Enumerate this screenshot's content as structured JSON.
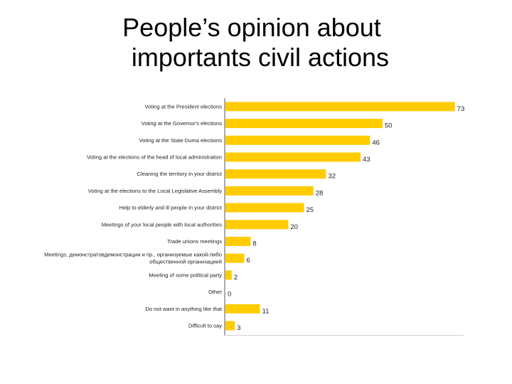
{
  "title_line1": "People’s opinion about",
  "title_line2": "importants civil actions",
  "chart_data": {
    "type": "bar",
    "orientation": "horizontal",
    "title": "People’s opinion about importants civil actions",
    "xlabel": "",
    "ylabel": "",
    "xlim": [
      0,
      80
    ],
    "grid": false,
    "legend": "none",
    "bar_color": "#FFCC00",
    "categories": [
      [
        "Voting at the President elections"
      ],
      [
        "Voting at the Governor's elections"
      ],
      [
        "Voting at the State Duma elections"
      ],
      [
        "Voting at the elections of the head of local administration"
      ],
      [
        "Cleaning the territory in your district"
      ],
      [
        "Voting at the elections to the Local Legislative Assembly"
      ],
      [
        "Help to elderly and ill people in your district"
      ],
      [
        "Meetings of your local people with local authorities"
      ],
      [
        "Trade unions meetings"
      ],
      [
        "Meetings, демонстратовдемонстрации и пр., организуемые какой-либо",
        "общественной организацией"
      ],
      [
        "Meeting of some political party"
      ],
      [
        "Other"
      ],
      [
        "Do not want in anything like that"
      ],
      [
        "Difficult to say"
      ]
    ],
    "values": [
      73,
      50,
      46,
      43,
      32,
      28,
      25,
      20,
      8,
      6,
      2,
      0,
      11,
      3
    ]
  }
}
